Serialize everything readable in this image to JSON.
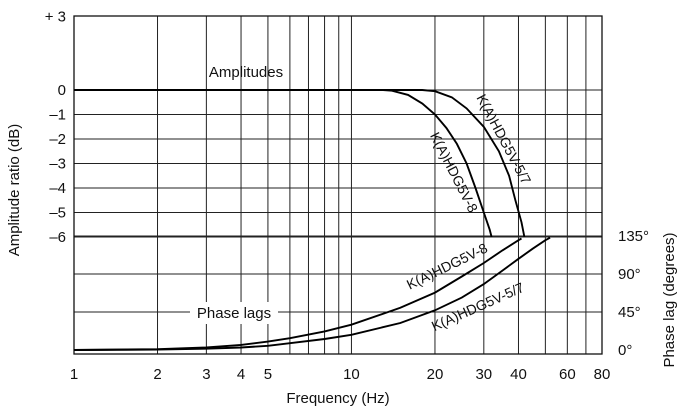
{
  "chart_data": {
    "type": "line",
    "x_scale": "log",
    "xlim": [
      1,
      80
    ],
    "xlabel": "Frequency (Hz)",
    "x_ticks": [
      1,
      2,
      3,
      4,
      5,
      10,
      20,
      30,
      40,
      60,
      80
    ],
    "x_tick_labels": [
      "1",
      "2",
      "3",
      "4",
      "5",
      "10",
      "20",
      "30",
      "40",
      "60",
      "80"
    ],
    "x_minor_gridlines": [
      6,
      7,
      8,
      9,
      50,
      70
    ],
    "left_axis": {
      "label": "Amplitude ratio (dB)",
      "ylim": [
        -6,
        3
      ],
      "ticks": [
        3,
        0,
        -1,
        -2,
        -3,
        -4,
        -5,
        -6
      ],
      "tick_labels": [
        "+ 3",
        "0",
        "–1",
        "–2",
        "–3",
        "–4",
        "–5",
        "–6"
      ]
    },
    "right_axis": {
      "label": "Phase lag (degrees)",
      "ylim": [
        0,
        135
      ],
      "ticks": [
        135,
        90,
        45,
        0
      ],
      "tick_labels": [
        "135°",
        "90°",
        "45°",
        "0°"
      ]
    },
    "grid": true,
    "annotations": {
      "amplitudes": "Amplitudes",
      "phase_lags": "Phase lags"
    },
    "series": [
      {
        "name": "K(A)HDG5V-8",
        "group": "amplitude",
        "axis": "left",
        "points": [
          [
            1,
            0
          ],
          [
            13,
            0
          ],
          [
            14,
            -0.03
          ],
          [
            16,
            -0.2
          ],
          [
            18,
            -0.55
          ],
          [
            20,
            -1.0
          ],
          [
            22,
            -1.55
          ],
          [
            24,
            -2.2
          ],
          [
            26,
            -3.0
          ],
          [
            28,
            -4.0
          ],
          [
            30,
            -5.0
          ],
          [
            31.5,
            -5.7
          ],
          [
            32,
            -6.0
          ]
        ]
      },
      {
        "name": "K(A)HDG5V-5/7",
        "group": "amplitude",
        "axis": "left",
        "points": [
          [
            1,
            0
          ],
          [
            18,
            0
          ],
          [
            20,
            -0.05
          ],
          [
            23,
            -0.3
          ],
          [
            26,
            -0.75
          ],
          [
            30,
            -1.5
          ],
          [
            34,
            -2.5
          ],
          [
            37,
            -3.5
          ],
          [
            39,
            -4.5
          ],
          [
            41,
            -5.4
          ],
          [
            42,
            -6.0
          ]
        ]
      },
      {
        "name": "K(A)HDG5V-8",
        "group": "phase",
        "axis": "right",
        "points": [
          [
            1,
            0
          ],
          [
            2,
            1
          ],
          [
            3,
            3
          ],
          [
            4,
            6
          ],
          [
            5,
            10
          ],
          [
            6,
            14
          ],
          [
            8,
            22
          ],
          [
            10,
            30
          ],
          [
            15,
            50
          ],
          [
            20,
            68
          ],
          [
            25,
            87
          ],
          [
            30,
            103
          ],
          [
            35,
            118
          ],
          [
            40,
            130
          ],
          [
            41,
            132
          ]
        ]
      },
      {
        "name": "K(A)HDG5V-5/7",
        "group": "phase",
        "axis": "right",
        "points": [
          [
            1,
            0
          ],
          [
            2,
            0.5
          ],
          [
            3,
            1.5
          ],
          [
            4,
            3
          ],
          [
            5,
            5
          ],
          [
            6,
            8
          ],
          [
            8,
            13
          ],
          [
            10,
            18
          ],
          [
            15,
            32
          ],
          [
            20,
            47
          ],
          [
            25,
            62
          ],
          [
            30,
            78
          ],
          [
            35,
            94
          ],
          [
            40,
            108
          ],
          [
            45,
            120
          ],
          [
            50,
            130
          ],
          [
            52,
            133
          ]
        ]
      }
    ]
  }
}
